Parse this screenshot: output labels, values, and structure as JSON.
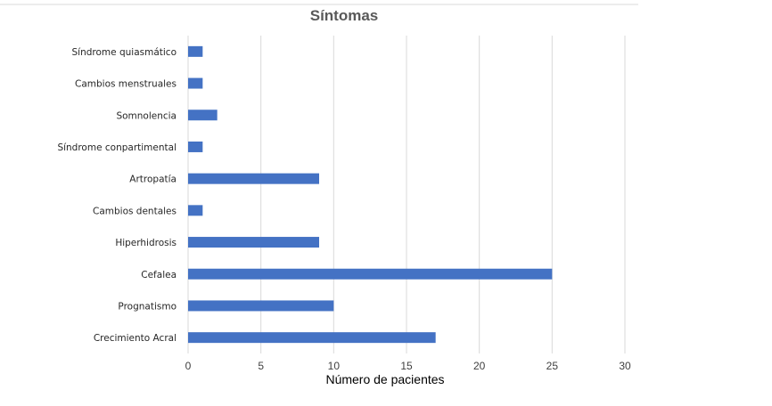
{
  "chart_data": {
    "type": "bar",
    "orientation": "horizontal",
    "title": "Síntomas",
    "xlabel": "Número de pacientes",
    "ylabel": "",
    "categories": [
      "Síndrome quiasmático",
      "Cambios menstruales",
      "Somnolencia",
      "Síndrome conpartimental",
      "Artropatía",
      "Cambios dentales",
      "Hiperhidrosis",
      "Cefalea",
      "Prognatismo",
      "Crecimiento Acral"
    ],
    "values": [
      1,
      1,
      2,
      1,
      9,
      1,
      9,
      25,
      10,
      17
    ],
    "xlim": [
      0,
      30
    ],
    "xticks": [
      "0",
      "5",
      "10",
      "15",
      "20",
      "25",
      "30"
    ],
    "grid": "vertical",
    "legend": "none",
    "bar_color": "#4472C4",
    "grid_color": "#d9d9d9",
    "title_color": "#595959"
  }
}
